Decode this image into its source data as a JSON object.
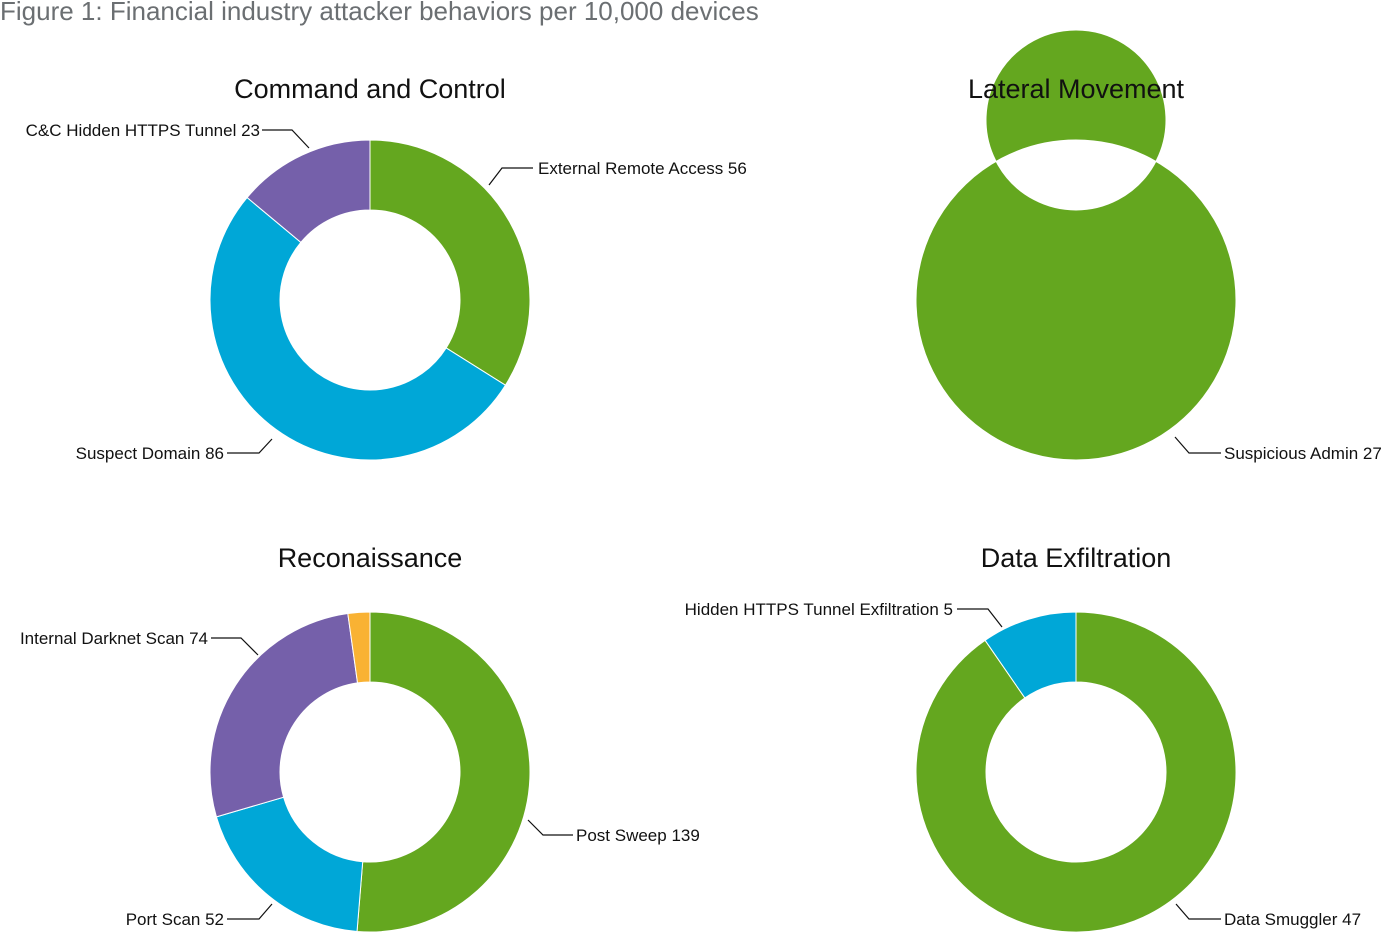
{
  "figure_title": "Figure 1: Financial industry attacker behaviors per 10,000 devices",
  "colors": {
    "green": "#64a71f",
    "blue": "#00a7d7",
    "purple": "#7560aa",
    "orange": "#f9b233"
  },
  "chart_data": [
    {
      "type": "pie",
      "title": "Command and Control",
      "slices": [
        {
          "label": "External Remote Access",
          "value": 56,
          "color": "#64a71f"
        },
        {
          "label": "Suspect Domain",
          "value": 86,
          "color": "#00a7d7"
        },
        {
          "label": "C&C Hidden HTTPS Tunnel",
          "value": 23,
          "color": "#7560aa"
        }
      ]
    },
    {
      "type": "pie",
      "title": "Lateral Movement",
      "slices": [
        {
          "label": "Suspicious Admin",
          "value": 27,
          "color": "#64a71f"
        }
      ]
    },
    {
      "type": "pie",
      "title": "Reconaissance",
      "slices": [
        {
          "label": "Post Sweep",
          "value": 139,
          "color": "#64a71f"
        },
        {
          "label": "Port Scan",
          "value": 52,
          "color": "#00a7d7"
        },
        {
          "label": "Internal Darknet Scan",
          "value": 74,
          "color": "#7560aa"
        },
        {
          "label": "",
          "value": 6,
          "color": "#f9b233"
        }
      ]
    },
    {
      "type": "pie",
      "title": "Data Exfiltration",
      "slices": [
        {
          "label": "Data Smuggler",
          "value": 47,
          "color": "#64a71f"
        },
        {
          "label": "Hidden HTTPS Tunnel Exfiltration",
          "value": 5,
          "color": "#00a7d7"
        }
      ]
    }
  ]
}
